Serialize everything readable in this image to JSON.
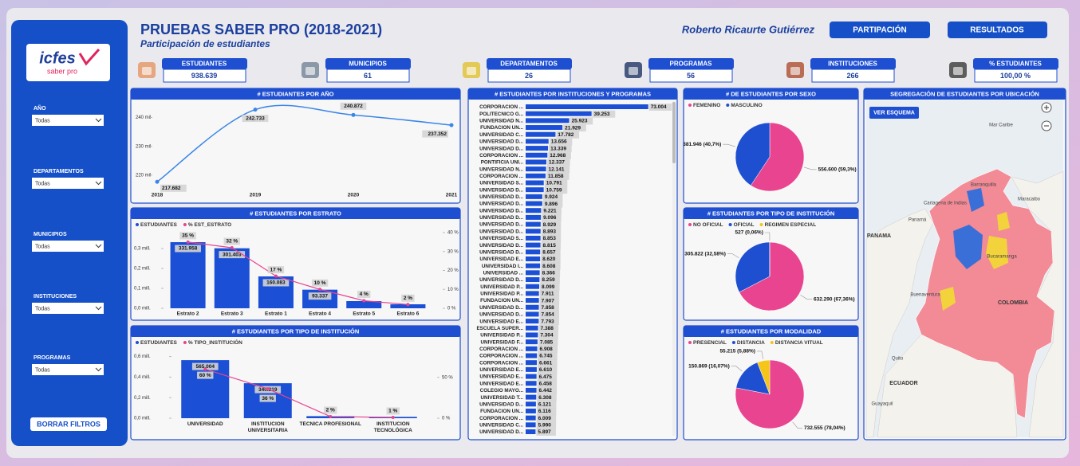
{
  "header": {
    "title": "PRUEBAS SABER PRO (2018-2021)",
    "subtitle": "Participación de estudiantes",
    "author": "Roberto Ricaurte Gutiérrez"
  },
  "nav": [
    "PARTIPACIÓN",
    "RESULTADOS"
  ],
  "logo": {
    "name": "icfes",
    "tag": "saber pro"
  },
  "kpis": [
    {
      "label": "ESTUDIANTES",
      "value": "938.639"
    },
    {
      "label": "MUNICIPIOS",
      "value": "61"
    },
    {
      "label": "DEPARTAMENTOS",
      "value": "26"
    },
    {
      "label": "PROGRAMAS",
      "value": "56"
    },
    {
      "label": "INSTITUCIONES",
      "value": "266"
    },
    {
      "label": "% ESTUDIANTES",
      "value": "100,00 %"
    }
  ],
  "filters": [
    {
      "label": "AÑO",
      "value": "Todas"
    },
    {
      "label": "DEPARTAMENTOS",
      "value": "Todas"
    },
    {
      "label": "MUNICIPIOS",
      "value": "Todas"
    },
    {
      "label": "INSTITUCIONES",
      "value": "Todas"
    },
    {
      "label": "PROGRAMAS",
      "value": "Todas"
    }
  ],
  "clear_button": "BORRAR FILTROS",
  "chart_data": [
    {
      "type": "line",
      "title": "# ESTUDIANTES POR AÑO",
      "categories": [
        "2018",
        "2019",
        "2020",
        "2021"
      ],
      "values": [
        217682,
        242733,
        240872,
        237352
      ],
      "value_labels": [
        "217.682",
        "242.733",
        "240.872",
        "237.352"
      ],
      "color": "#3a86e8",
      "ylim": [
        215000,
        244000
      ],
      "yticks": [
        {
          "value": 220000,
          "label": "220 mil"
        },
        {
          "value": 230000,
          "label": "230 mil"
        },
        {
          "value": 240000,
          "label": "240 mil"
        }
      ]
    },
    {
      "type": "combo",
      "title": "# ESTUDIANTES POR ESTRATO",
      "categories": [
        "Estrato 2",
        "Estrato 3",
        "Estrato 1",
        "Estrato 4",
        "Estrato 5",
        "Estrato 6"
      ],
      "series": [
        {
          "name": "ESTUDIANTES",
          "color": "#1a4fd6",
          "values": [
            331958,
            301403,
            160083,
            93337,
            36000,
            20000
          ],
          "value_labels": [
            "331.958",
            "301.403",
            "160.083",
            "93.337",
            null,
            null
          ]
        },
        {
          "name": "% EST_ESTRATO",
          "color": "#e8448f",
          "axis": "y2",
          "values": [
            35,
            32,
            17,
            10,
            4,
            2
          ],
          "value_labels": [
            "35 %",
            "32 %",
            "17 %",
            "10 %",
            "4 %",
            "2 %"
          ]
        }
      ],
      "ylim": [
        0,
        380000
      ],
      "yticks": [
        {
          "value": 0,
          "label": "0,0 mill."
        },
        {
          "value": 100000,
          "label": "0,1 mill."
        },
        {
          "value": 200000,
          "label": "0,2 mill."
        },
        {
          "value": 300000,
          "label": "0,3 mill."
        }
      ],
      "y2lim": [
        0,
        40
      ],
      "y2ticks": [
        {
          "value": 0,
          "label": "0 %"
        },
        {
          "value": 10,
          "label": "10 %"
        },
        {
          "value": 20,
          "label": "20 %"
        },
        {
          "value": 30,
          "label": "30 %"
        },
        {
          "value": 40,
          "label": "40 %"
        }
      ]
    },
    {
      "type": "combo",
      "title": "# ESTUDIANTES POR TIPO DE INSTITUCIÓN",
      "categories": [
        "UNIVERSIDAD",
        "INSTITUCIÓN UNIVERSITARIA",
        "TÉCNICA PROFESIONAL",
        "INSTITUCIÓN TECNOLÓGICA"
      ],
      "series": [
        {
          "name": "ESTUDIANTES",
          "color": "#1a4fd6",
          "values": [
            565004,
            340319,
            20000,
            13300
          ],
          "value_labels": [
            "565.004",
            "340.319",
            null,
            null
          ]
        },
        {
          "name": "% TIPO_INSTITUCIÓN",
          "color": "#e8448f",
          "axis": "y2",
          "values": [
            60,
            36,
            2,
            1
          ],
          "value_labels": [
            "60 %",
            "36 %",
            "2 %",
            "1 %"
          ]
        }
      ],
      "ylim": [
        0,
        620000
      ],
      "yticks": [
        {
          "value": 0,
          "label": "0,0 mill."
        },
        {
          "value": 200000,
          "label": "0,2 mill."
        },
        {
          "value": 400000,
          "label": "0,4 mill."
        },
        {
          "value": 600000,
          "label": "0,6 mill."
        }
      ],
      "y2lim": [
        0,
        78
      ],
      "y2ticks": [
        {
          "value": 0,
          "label": "0 %"
        },
        {
          "value": 50,
          "label": "50 %"
        }
      ]
    },
    {
      "type": "hbar",
      "title": "# ESTUDIANTES POR INSTITUCIONES Y PROGRAMAS",
      "color": "#1a4fd6",
      "xlim": [
        0,
        76000
      ],
      "categories": [
        "CORPORACION ...",
        "POLITECNICO G...",
        "UNIVERSIDAD N...",
        "FUNDACION UN...",
        "UNIVERSIDAD C...",
        "UNIVERSIDAD D...",
        "UNIVERSIDAD D...",
        "CORPORACION ...",
        "PONTIFICIA UNI...",
        "UNIVERSIDAD N...",
        "CORPORACION ...",
        "UNIVERSIDAD S...",
        "UNIVERSIDAD D...",
        "UNIVERSIDAD D...",
        "UNIVERSIDAD D...",
        "UNIVERSIDAD D...",
        "UNIVERSIDAD D...",
        "UNIVERSIDAD D...",
        "UNIVERSIDAD D...",
        "UNIVERSIDAD S...",
        "UNIVERSIDAD D...",
        "UNIVERSIDAD D...",
        "UNIVERSIDAD E...",
        "UNIVERSIDAD I...",
        "UNIVERSIDAD ...",
        "UNIVERSIDAD D...",
        "UNIVERSIDAD P...",
        "UNIVERSIDAD P...",
        "FUNDACION UN...",
        "UNIVERSIDAD D...",
        "UNIVERSIDAD D...",
        "UNIVERSIDAD E...",
        "ESCUELA SUPER...",
        "UNIVERSIDAD P...",
        "UNIVERSIDAD F...",
        "CORPORACION ...",
        "CORPORACION ...",
        "CORPORACION ...",
        "UNIVERSIDAD E...",
        "UNIVERSIDAD E...",
        "UNIVERSIDAD E...",
        "COLEGIO MAYO...",
        "UNIVERSIDAD T...",
        "UNIVERSIDAD D...",
        "FUNDACION UN...",
        "CORPORACION ...",
        "UNIVERSIDAD C...",
        "UNIVERSIDAD D..."
      ],
      "values": [
        73004,
        39253,
        25923,
        21929,
        17782,
        13656,
        13339,
        12968,
        12337,
        12141,
        11858,
        10791,
        10759,
        9924,
        9896,
        9221,
        9096,
        8929,
        8893,
        8853,
        8815,
        8657,
        8620,
        8608,
        8366,
        8259,
        8099,
        7911,
        7907,
        7858,
        7854,
        7793,
        7388,
        7304,
        7085,
        6908,
        6745,
        6661,
        6610,
        6475,
        6458,
        6442,
        6308,
        6121,
        6116,
        6009,
        5990,
        5897
      ],
      "value_labels": [
        "73.004",
        "39.253",
        "25.923",
        "21.929",
        "17.782",
        "13.656",
        "13.339",
        "12.968",
        "12.337",
        "12.141",
        "11.858",
        "10.791",
        "10.759",
        "9.924",
        "9.896",
        "9.221",
        "9.096",
        "8.929",
        "8.893",
        "8.853",
        "8.815",
        "8.657",
        "8.620",
        "8.608",
        "8.366",
        "8.259",
        "8.099",
        "7.911",
        "7.907",
        "7.858",
        "7.854",
        "7.793",
        "7.388",
        "7.304",
        "7.085",
        "6.908",
        "6.745",
        "6.661",
        "6.610",
        "6.475",
        "6.458",
        "6.442",
        "6.308",
        "6.121",
        "6.116",
        "6.009",
        "5.990",
        "5.897"
      ]
    },
    {
      "type": "pie",
      "title": "# DE ESTUDIANTES POR SEXO",
      "categories": [
        "FEMENINO",
        "MASCULINO"
      ],
      "colors": [
        "#e8448f",
        "#1f4fd1"
      ],
      "values": [
        556600,
        381946
      ],
      "value_labels": [
        "556.600 (59,3%)",
        "381.946 (40,7%)"
      ]
    },
    {
      "type": "pie",
      "title": "# ESTUDIANTES POR TIPO DE INSTITUCIÓN",
      "categories": [
        "NO OFICIAL",
        "OFICIAL",
        "REGIMEN ESPECIAL"
      ],
      "colors": [
        "#e8448f",
        "#1f4fd1",
        "#f5c518"
      ],
      "values": [
        632290,
        305822,
        527
      ],
      "value_labels": [
        "632.290 (67,36%)",
        "305.822 (32,58%)",
        "527 (0,06%)"
      ]
    },
    {
      "type": "pie",
      "title": "# ESTUDIANTES POR  MODALIDAD",
      "categories": [
        "PRESENCIAL",
        "DISTANCIA",
        "DISTANCIA VITUAL"
      ],
      "colors": [
        "#e8448f",
        "#1f4fd1",
        "#f5c518"
      ],
      "values": [
        732555,
        150869,
        55215
      ],
      "value_labels": [
        "732.555 (78,04%)",
        "150.869 (16,07%)",
        "55.215 (5,88%)"
      ]
    }
  ],
  "map": {
    "title": "SEGREGACIÓN DE ESTUDIANTES POR UBICACIÓN",
    "button": "VER ESQUEMA",
    "labels": [
      "Mar Caribe",
      "Barranquilla",
      "Maracaibo",
      "Cartagena de Indias",
      "Panamá",
      "PANAMA",
      "Bucaramanga",
      "Buenaventura",
      "COLOMBIA",
      "Quito",
      "ECUADOR",
      "Guayaquil"
    ]
  }
}
